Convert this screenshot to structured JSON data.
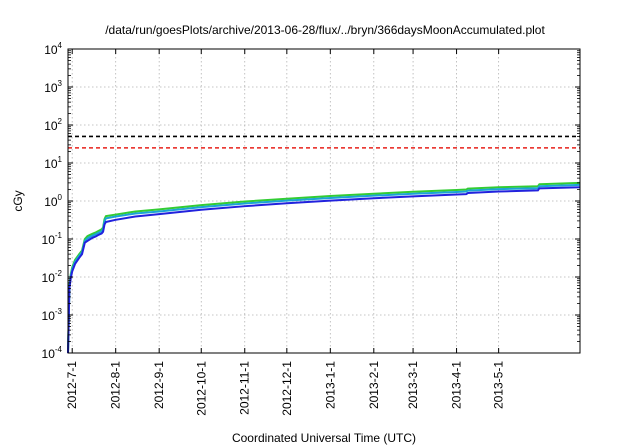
{
  "chart_data": {
    "type": "line",
    "title": "/data/run/goesPlots/archive/2013-06-28/flux/../bryn/366daysMoonAccumulated.plot",
    "xlabel": "Coordinated Universal Time (UTC)",
    "ylabel": "cGy",
    "xscale": "time",
    "yscale": "log",
    "xlim": [
      "2012-06-28",
      "2013-06-28"
    ],
    "ylim": [
      0.0001,
      10000
    ],
    "grid": true,
    "legend": "none",
    "x_ticks": [
      {
        "date": "2012-07-01",
        "label": "2012-7-1"
      },
      {
        "date": "2012-08-01",
        "label": "2012-8-1"
      },
      {
        "date": "2012-09-01",
        "label": "2012-9-1"
      },
      {
        "date": "2012-10-01",
        "label": "2012-10-1"
      },
      {
        "date": "2012-11-01",
        "label": "2012-11-1"
      },
      {
        "date": "2012-12-01",
        "label": "2012-12-1"
      },
      {
        "date": "2013-01-01",
        "label": "2013-1-1"
      },
      {
        "date": "2013-02-01",
        "label": "2013-2-1"
      },
      {
        "date": "2013-03-01",
        "label": "2013-3-1"
      },
      {
        "date": "2013-04-01",
        "label": "2013-4-1"
      },
      {
        "date": "2013-05-01",
        "label": "2013-5-1"
      }
    ],
    "y_ticks": [
      {
        "value": 0.0001,
        "base": "10",
        "exp": "-4"
      },
      {
        "value": 0.001,
        "base": "10",
        "exp": "-3"
      },
      {
        "value": 0.01,
        "base": "10",
        "exp": "-2"
      },
      {
        "value": 0.1,
        "base": "10",
        "exp": "-1"
      },
      {
        "value": 1,
        "base": "10",
        "exp": "0"
      },
      {
        "value": 10,
        "base": "10",
        "exp": "1"
      },
      {
        "value": 100,
        "base": "10",
        "exp": "2"
      },
      {
        "value": 1000,
        "base": "10",
        "exp": "3"
      },
      {
        "value": 10000,
        "base": "10",
        "exp": "4"
      }
    ],
    "reference_lines": [
      {
        "y": 50,
        "color": "#000000"
      },
      {
        "y": 25,
        "color": "#e8201a"
      }
    ],
    "series": [
      {
        "color": "#33cc33",
        "points": [
          [
            "2012-06-28",
            0.0001
          ],
          [
            "2012-06-29",
            0.006
          ],
          [
            "2012-06-30",
            0.012
          ],
          [
            "2012-07-01",
            0.018
          ],
          [
            "2012-07-03",
            0.028
          ],
          [
            "2012-07-06",
            0.04
          ],
          [
            "2012-07-08",
            0.05
          ],
          [
            "2012-07-10",
            0.1
          ],
          [
            "2012-07-12",
            0.12
          ],
          [
            "2012-07-14",
            0.13
          ],
          [
            "2012-07-16",
            0.14
          ],
          [
            "2012-07-18",
            0.15
          ],
          [
            "2012-07-20",
            0.165
          ],
          [
            "2012-07-22",
            0.18
          ],
          [
            "2012-07-23",
            0.2
          ],
          [
            "2012-07-24",
            0.33
          ],
          [
            "2012-07-25",
            0.4
          ],
          [
            "2012-08-01",
            0.44
          ],
          [
            "2012-08-15",
            0.53
          ],
          [
            "2012-09-01",
            0.6
          ],
          [
            "2012-10-01",
            0.78
          ],
          [
            "2012-11-01",
            0.97
          ],
          [
            "2012-12-01",
            1.15
          ],
          [
            "2013-01-01",
            1.35
          ],
          [
            "2013-02-01",
            1.55
          ],
          [
            "2013-03-01",
            1.75
          ],
          [
            "2013-04-01",
            1.95
          ],
          [
            "2013-04-08",
            2.0
          ],
          [
            "2013-04-09",
            2.12
          ],
          [
            "2013-05-01",
            2.3
          ],
          [
            "2013-05-29",
            2.45
          ],
          [
            "2013-05-30",
            2.75
          ],
          [
            "2013-06-28",
            3.0
          ]
        ]
      },
      {
        "color": "#1ba3d6",
        "points": [
          [
            "2012-06-28",
            0.0001
          ],
          [
            "2012-06-29",
            0.0055
          ],
          [
            "2012-06-30",
            0.011
          ],
          [
            "2012-07-01",
            0.016
          ],
          [
            "2012-07-03",
            0.025
          ],
          [
            "2012-07-06",
            0.036
          ],
          [
            "2012-07-08",
            0.045
          ],
          [
            "2012-07-10",
            0.09
          ],
          [
            "2012-07-12",
            0.105
          ],
          [
            "2012-07-14",
            0.115
          ],
          [
            "2012-07-16",
            0.125
          ],
          [
            "2012-07-18",
            0.135
          ],
          [
            "2012-07-20",
            0.148
          ],
          [
            "2012-07-22",
            0.16
          ],
          [
            "2012-07-23",
            0.178
          ],
          [
            "2012-07-24",
            0.29
          ],
          [
            "2012-07-25",
            0.35
          ],
          [
            "2012-08-01",
            0.39
          ],
          [
            "2012-08-15",
            0.47
          ],
          [
            "2012-09-01",
            0.53
          ],
          [
            "2012-10-01",
            0.69
          ],
          [
            "2012-11-01",
            0.86
          ],
          [
            "2012-12-01",
            1.02
          ],
          [
            "2013-01-01",
            1.2
          ],
          [
            "2013-02-01",
            1.38
          ],
          [
            "2013-03-01",
            1.55
          ],
          [
            "2013-04-01",
            1.73
          ],
          [
            "2013-04-08",
            1.78
          ],
          [
            "2013-04-09",
            1.88
          ],
          [
            "2013-05-01",
            2.05
          ],
          [
            "2013-05-29",
            2.17
          ],
          [
            "2013-05-30",
            2.45
          ],
          [
            "2013-06-28",
            2.65
          ]
        ]
      },
      {
        "color": "#2222dd",
        "points": [
          [
            "2012-06-28",
            0.0001
          ],
          [
            "2012-06-29",
            0.005
          ],
          [
            "2012-06-30",
            0.0095
          ],
          [
            "2012-07-01",
            0.014
          ],
          [
            "2012-07-03",
            0.022
          ],
          [
            "2012-07-06",
            0.032
          ],
          [
            "2012-07-08",
            0.04
          ],
          [
            "2012-07-10",
            0.08
          ],
          [
            "2012-07-12",
            0.09
          ],
          [
            "2012-07-14",
            0.1
          ],
          [
            "2012-07-16",
            0.11
          ],
          [
            "2012-07-18",
            0.118
          ],
          [
            "2012-07-20",
            0.13
          ],
          [
            "2012-07-22",
            0.14
          ],
          [
            "2012-07-23",
            0.155
          ],
          [
            "2012-07-24",
            0.24
          ],
          [
            "2012-07-25",
            0.28
          ],
          [
            "2012-08-01",
            0.32
          ],
          [
            "2012-08-15",
            0.39
          ],
          [
            "2012-09-01",
            0.45
          ],
          [
            "2012-10-01",
            0.59
          ],
          [
            "2012-11-01",
            0.73
          ],
          [
            "2012-12-01",
            0.87
          ],
          [
            "2013-01-01",
            1.02
          ],
          [
            "2013-02-01",
            1.18
          ],
          [
            "2013-03-01",
            1.32
          ],
          [
            "2013-04-01",
            1.48
          ],
          [
            "2013-04-08",
            1.52
          ],
          [
            "2013-04-09",
            1.62
          ],
          [
            "2013-05-01",
            1.78
          ],
          [
            "2013-05-29",
            1.9
          ],
          [
            "2013-05-30",
            2.15
          ],
          [
            "2013-06-28",
            2.3
          ]
        ]
      }
    ]
  }
}
